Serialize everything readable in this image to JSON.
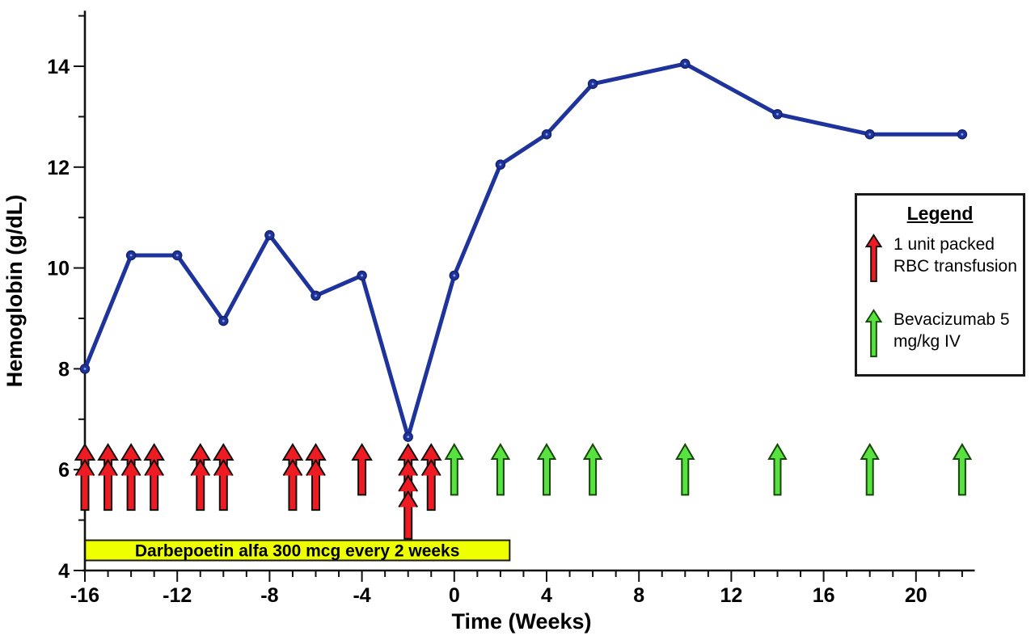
{
  "chart_data": {
    "type": "line",
    "title": "",
    "xlabel": "Time (Weeks)",
    "ylabel": "Hemoglobin (g/dL)",
    "xlim": [
      -16,
      22.5
    ],
    "ylim": [
      4,
      15.1
    ],
    "grid": false,
    "x_major_ticks": [
      -16,
      -12,
      -8,
      -4,
      0,
      4,
      8,
      12,
      16,
      20
    ],
    "x_minor_ticks": [
      -16,
      -15,
      -14,
      -13,
      -12,
      -11,
      -10,
      -9,
      -8,
      -7,
      -6,
      -5,
      -4,
      -3,
      -2,
      -1,
      0,
      1,
      2,
      3,
      4,
      5,
      6,
      7,
      8,
      9,
      10,
      11,
      12,
      13,
      14,
      15,
      16,
      17,
      18,
      19,
      20,
      21,
      22
    ],
    "y_major_ticks": [
      4,
      6,
      8,
      10,
      12,
      14
    ],
    "y_minor_ticks": [
      5,
      7,
      9,
      11,
      13,
      15
    ],
    "series": [
      {
        "name": "Hemoglobin",
        "color": "#1e339b",
        "marker": "circle",
        "x": [
          -16,
          -14,
          -12,
          -10,
          -8,
          -6,
          -4,
          -2,
          0,
          2,
          4,
          6,
          10,
          14,
          18,
          22
        ],
        "y": [
          8.0,
          10.25,
          10.25,
          8.95,
          10.65,
          9.45,
          9.85,
          6.65,
          9.85,
          12.05,
          12.65,
          13.65,
          14.05,
          13.05,
          12.65,
          12.65
        ]
      }
    ],
    "events": {
      "rbc_transfusions": {
        "label": "1 unit packed RBC transfusion",
        "color": "#ee1b22",
        "arrow_top_value": 6.5,
        "arrows": [
          {
            "week": -16,
            "units": 2
          },
          {
            "week": -15,
            "units": 2
          },
          {
            "week": -14,
            "units": 2
          },
          {
            "week": -13,
            "units": 2
          },
          {
            "week": -11,
            "units": 2
          },
          {
            "week": -10,
            "units": 2
          },
          {
            "week": -7,
            "units": 2
          },
          {
            "week": -6,
            "units": 2
          },
          {
            "week": -4,
            "units": 1
          },
          {
            "week": -2,
            "units": 4
          },
          {
            "week": -1,
            "units": 2
          }
        ]
      },
      "bevacizumab_doses": {
        "label": "Bevacizumab 5 mg/kg IV",
        "color": "#58e23f",
        "arrow_top_value": 6.5,
        "arrow_bottom_value": 5.5,
        "weeks": [
          0,
          2,
          4,
          6,
          10,
          14,
          18,
          22
        ]
      }
    },
    "treatment_band": {
      "label": "Darbepoetin alfa 300 mcg every 2 weeks",
      "start_week": -16,
      "end_week": 2.4,
      "value_range": [
        4.2,
        4.6
      ],
      "fill": "#eeff00"
    }
  },
  "legend": {
    "title": "Legend",
    "items": [
      {
        "icon": "red-up-arrow",
        "label": "1 unit packed RBC transfusion"
      },
      {
        "icon": "green-up-arrow",
        "label": "Bevacizumab 5 mg/kg IV"
      }
    ]
  }
}
